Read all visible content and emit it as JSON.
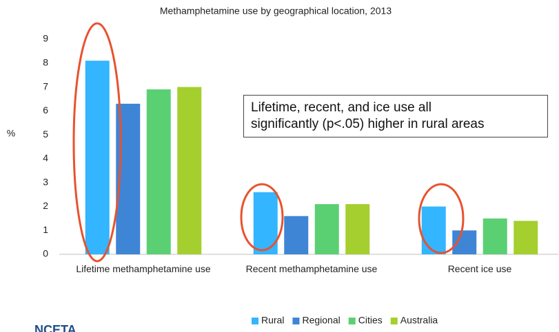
{
  "chart_data": {
    "type": "bar",
    "title": "Methamphetamine use by geographical location, 2013",
    "y_label": "%",
    "categories": [
      "Lifetime methamphetamine use",
      "Recent methamphetamine use",
      "Recent ice use"
    ],
    "series": [
      {
        "name": "Rural",
        "color": "#33b5ff",
        "values": [
          8.1,
          2.6,
          2.0
        ]
      },
      {
        "name": "Regional",
        "color": "#3f85d6",
        "values": [
          6.3,
          1.6,
          1.0
        ]
      },
      {
        "name": "Cities",
        "color": "#5bd073",
        "values": [
          6.9,
          2.1,
          1.5
        ]
      },
      {
        "name": "Australia",
        "color": "#a4cf2e",
        "values": [
          7.0,
          2.1,
          1.4
        ]
      }
    ],
    "ylim": [
      0,
      9
    ],
    "yticks": [
      0,
      1,
      2,
      3,
      4,
      5,
      6,
      7,
      8,
      9
    ],
    "annotation": [
      "Lifetime, recent, and ice use all",
      "significantly (p<.05) higher in rural areas"
    ],
    "logo": "NCETA"
  }
}
